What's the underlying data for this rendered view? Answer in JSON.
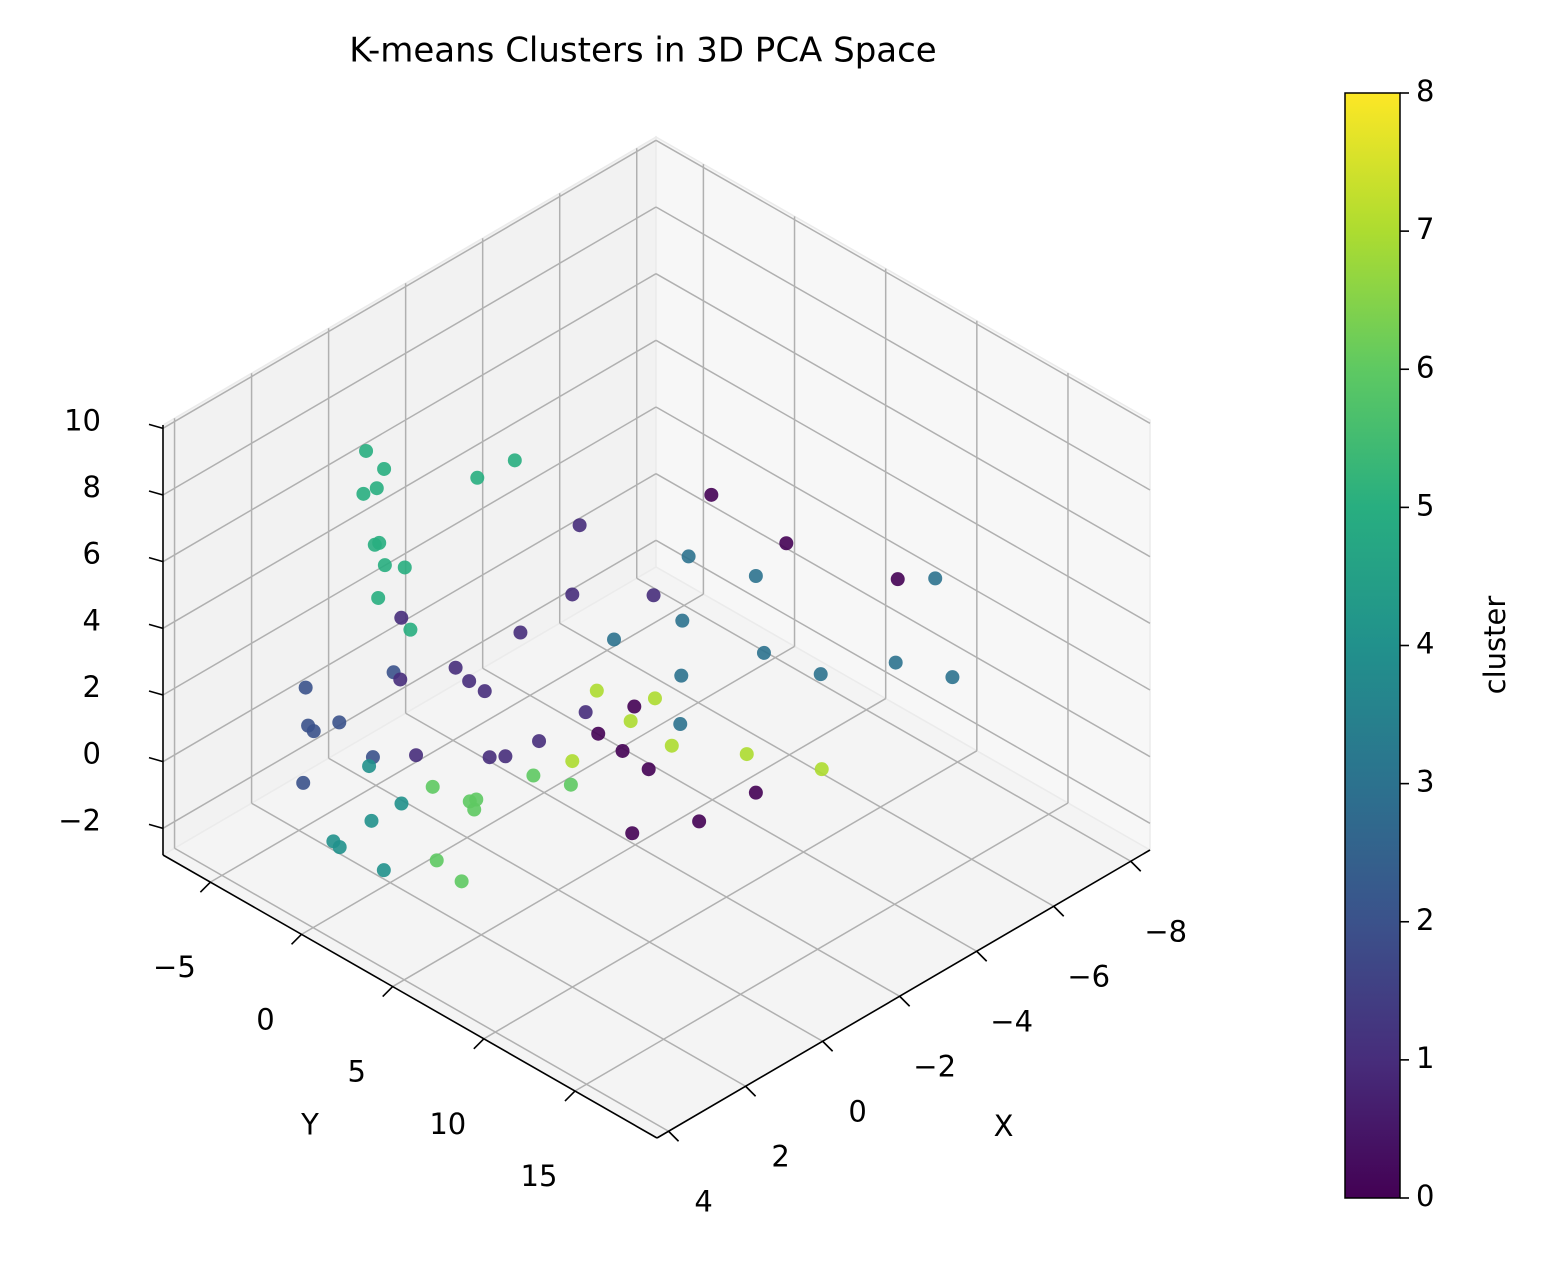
{
  "chart_data": {
    "type": "scatter3d",
    "title": "K-means Clusters in 3D PCA Space",
    "x_label": "X",
    "y_label": "Y",
    "xlim": [
      -8.5,
      4.3
    ],
    "ylim": [
      -7.6,
      19.5
    ],
    "zlim": [
      -2.8,
      10.1
    ],
    "xticks": [
      {
        "value": -8,
        "label": "−8"
      },
      {
        "value": -6,
        "label": "−6"
      },
      {
        "value": -4,
        "label": "−4"
      },
      {
        "value": -2,
        "label": "−2"
      },
      0,
      2,
      4
    ],
    "yticks": [
      {
        "value": -5,
        "label": "−5"
      },
      0,
      5,
      10,
      15
    ],
    "zticks": [
      {
        "value": -2,
        "label": "−2"
      },
      0,
      2,
      4,
      6,
      8,
      10
    ],
    "grid": true,
    "colorbar": {
      "label": "cluster",
      "lim": [
        0,
        8
      ],
      "ticks": [
        0,
        1,
        2,
        3,
        4,
        5,
        6,
        7,
        8
      ],
      "colors": [
        "#440154",
        "#472d7b",
        "#3b528b",
        "#2c728e",
        "#21918c",
        "#28ae80",
        "#5ec962",
        "#addc30",
        "#fde725"
      ]
    },
    "series": [
      {
        "color": "#2c728e",
        "x": [
          -1.3,
          -1.8,
          -0.8,
          -2.5,
          -3.5,
          -4.5,
          -3.0,
          -5.5,
          -6.0,
          -2.2,
          -0.5
        ],
        "y": [
          9,
          8,
          10,
          11,
          12,
          14,
          9.5,
          15,
          13,
          7.5,
          7.0
        ],
        "z": [
          4,
          5,
          3.2,
          4.5,
          3.5,
          3.8,
          6.0,
          3.0,
          5.0,
          6.5,
          5.0
        ]
      },
      {
        "color": "#28ae80",
        "x": [
          1.1,
          0.5,
          1.6,
          0.8,
          1.4,
          0.2,
          1.9,
          1.0,
          0.6,
          1.3,
          -0.5,
          -1.0
        ],
        "y": [
          -2.5,
          -3.5,
          -1.5,
          -4,
          -2,
          -3,
          -0.5,
          -1,
          -3.8,
          -2.8,
          -0.5,
          0.5
        ],
        "z": [
          6,
          7.5,
          5,
          6.8,
          8,
          4.5,
          6.5,
          3.8,
          5.2,
          8.8,
          7.5,
          8
        ]
      },
      {
        "color": "#440154",
        "x": [
          -1.1,
          -1.4,
          -0.8,
          -0.5,
          -2.0,
          -1.5,
          -3.0,
          -4.5,
          -5.5,
          -3.5
        ],
        "y": [
          6.2,
          7.0,
          5.5,
          8.0,
          8.5,
          6.0,
          9.5,
          8.0,
          12.0,
          6.0
        ],
        "z": [
          1,
          0.5,
          1.5,
          -0.5,
          -1.0,
          2.0,
          -0.5,
          5.5,
          5.0,
          7.0
        ]
      },
      {
        "color": "#3b528b",
        "x": [
          1.9,
          2.3,
          1.5,
          2.6,
          1.2,
          2.0,
          2.8
        ],
        "y": [
          -3,
          -4,
          -2,
          -3.5,
          -1.5,
          -4.5,
          -2.5
        ],
        "z": [
          1,
          2,
          0,
          -0.5,
          2.5,
          0.5,
          1.5
        ]
      },
      {
        "color": "#472d7b",
        "x": [
          0.8,
          0.3,
          1.2,
          0.5,
          1.5,
          -0.2,
          0.9,
          1.8,
          0.0,
          -0.6,
          1.0,
          -1.5,
          -2.0,
          0.6
        ],
        "y": [
          1.8,
          0.0,
          3.5,
          5.0,
          -0.5,
          2.5,
          4.0,
          1.0,
          6.5,
          4.5,
          -1.5,
          3.0,
          6.0,
          2.5
        ],
        "z": [
          3,
          2.5,
          3.5,
          2.0,
          2.8,
          4,
          1.5,
          1.2,
          3.0,
          5.5,
          4.0,
          6.5,
          5.0,
          0.8
        ]
      },
      {
        "color": "#addc30",
        "x": [
          -1.5,
          -1.0,
          -2.0,
          -1.8,
          -0.6,
          -3.0,
          -4.0
        ],
        "y": [
          5.8,
          5.0,
          7.0,
          6.5,
          4.5,
          9.0,
          11.0
        ],
        "z": [
          1.5,
          2.5,
          0.8,
          2.2,
          0.5,
          0.5,
          0.0
        ]
      },
      {
        "color": "#21918c",
        "x": [
          2.2,
          2.6,
          1.8,
          3.0,
          2.4,
          1.6
        ],
        "y": [
          -0.6,
          -1.5,
          0.2,
          -1.0,
          0.5,
          -2.0
        ],
        "z": [
          -1,
          -1.8,
          -0.5,
          -1.2,
          -2.0,
          -0.2
        ]
      },
      {
        "color": "#5ec962",
        "x": [
          0.5,
          1.0,
          0.0,
          1.5,
          -0.3,
          0.8,
          -0.8,
          1.8
        ],
        "y": [
          1.2,
          2.5,
          0.5,
          1.5,
          3.0,
          -0.2,
          4.0,
          3.5
        ],
        "z": [
          -1,
          -0.5,
          -1.5,
          -2.0,
          -0.2,
          -0.8,
          -0.5,
          -1.8
        ]
      }
    ]
  }
}
